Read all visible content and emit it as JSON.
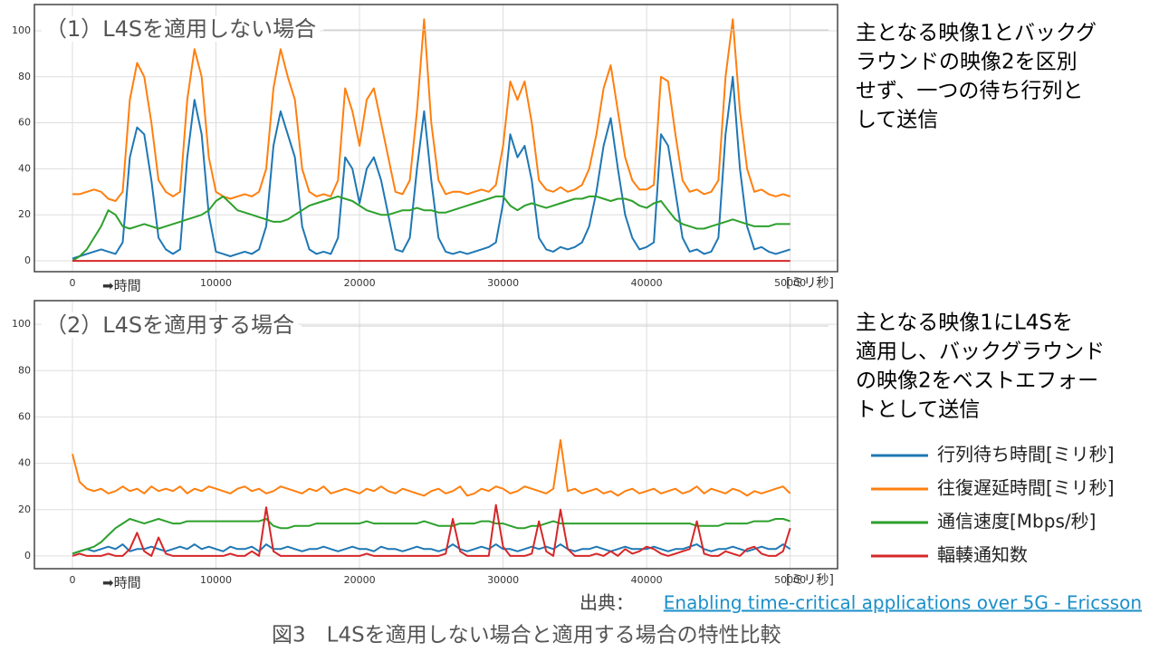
{
  "chart_data": [
    {
      "type": "line",
      "title": "（1）L4Sを適用しない場合",
      "xlabel": "➡時間",
      "xunit": "[ミリ秒]",
      "xlim": [
        -2650,
        53300
      ],
      "ylim": [
        -4.7,
        111.4
      ],
      "xticks": [
        0,
        10000,
        20000,
        30000,
        40000,
        50000
      ],
      "yticks": [
        0,
        20,
        40,
        60,
        80,
        100
      ],
      "grid": true,
      "x": [
        0,
        500,
        1000,
        1500,
        2000,
        2500,
        3000,
        3500,
        4000,
        4500,
        5000,
        5500,
        6000,
        6500,
        7000,
        7500,
        8000,
        8500,
        9000,
        9500,
        10000,
        10500,
        11000,
        11500,
        12000,
        12500,
        13000,
        13500,
        14000,
        14500,
        15000,
        15500,
        16000,
        16500,
        17000,
        17500,
        18000,
        18500,
        19000,
        19500,
        20000,
        20500,
        21000,
        21500,
        22000,
        22500,
        23000,
        23500,
        24000,
        24500,
        25000,
        25500,
        26000,
        26500,
        27000,
        27500,
        28000,
        28500,
        29000,
        29500,
        30000,
        30500,
        31000,
        31500,
        32000,
        32500,
        33000,
        33500,
        34000,
        34500,
        35000,
        35500,
        36000,
        36500,
        37000,
        37500,
        38000,
        38500,
        39000,
        39500,
        40000,
        40500,
        41000,
        41500,
        42000,
        42500,
        43000,
        43500,
        44000,
        44500,
        45000,
        45500,
        46000,
        46500,
        47000,
        47500,
        48000,
        48500,
        49000,
        49500,
        50000
      ],
      "series": [
        {
          "color": "#1f77b4",
          "values": [
            1,
            2,
            3,
            4,
            5,
            4,
            3,
            8,
            45,
            58,
            55,
            35,
            10,
            5,
            3,
            5,
            45,
            70,
            55,
            20,
            4,
            3,
            2,
            3,
            4,
            3,
            5,
            15,
            50,
            65,
            55,
            45,
            15,
            5,
            3,
            4,
            3,
            10,
            45,
            40,
            25,
            40,
            45,
            35,
            20,
            5,
            4,
            10,
            40,
            65,
            35,
            10,
            4,
            3,
            4,
            3,
            4,
            5,
            6,
            8,
            25,
            55,
            45,
            50,
            35,
            10,
            5,
            4,
            6,
            5,
            6,
            8,
            15,
            30,
            50,
            62,
            40,
            20,
            10,
            5,
            6,
            8,
            55,
            50,
            30,
            10,
            4,
            5,
            3,
            4,
            10,
            55,
            80,
            40,
            15,
            5,
            6,
            4,
            3,
            4,
            5
          ]
        },
        {
          "color": "#ff7f0e",
          "values": [
            29,
            29,
            30,
            31,
            30,
            27,
            26,
            30,
            70,
            86,
            80,
            60,
            35,
            30,
            28,
            30,
            70,
            92,
            80,
            45,
            30,
            28,
            27,
            28,
            29,
            28,
            30,
            40,
            75,
            92,
            80,
            70,
            40,
            30,
            28,
            29,
            28,
            35,
            75,
            65,
            50,
            70,
            75,
            60,
            45,
            30,
            29,
            35,
            65,
            105,
            60,
            35,
            29,
            30,
            30,
            29,
            30,
            31,
            30,
            33,
            50,
            78,
            70,
            78,
            60,
            35,
            31,
            30,
            32,
            30,
            31,
            33,
            40,
            55,
            75,
            85,
            65,
            45,
            35,
            31,
            31,
            33,
            80,
            78,
            55,
            35,
            30,
            31,
            29,
            30,
            35,
            80,
            105,
            65,
            40,
            30,
            31,
            29,
            28,
            29,
            28
          ]
        },
        {
          "color": "#2ca02c",
          "values": [
            0,
            2,
            5,
            10,
            15,
            22,
            20,
            15,
            14,
            15,
            16,
            15,
            14,
            15,
            16,
            17,
            18,
            19,
            20,
            22,
            26,
            28,
            25,
            22,
            21,
            20,
            19,
            18,
            17,
            17,
            18,
            20,
            22,
            24,
            25,
            26,
            27,
            28,
            27,
            26,
            24,
            22,
            21,
            20,
            20,
            21,
            22,
            22,
            23,
            22,
            22,
            21,
            21,
            22,
            23,
            24,
            25,
            26,
            27,
            28,
            28,
            24,
            22,
            24,
            25,
            24,
            23,
            24,
            25,
            26,
            27,
            27,
            28,
            28,
            27,
            26,
            27,
            27,
            26,
            24,
            23,
            25,
            26,
            22,
            18,
            16,
            15,
            14,
            14,
            15,
            16,
            17,
            18,
            17,
            16,
            15,
            15,
            15,
            16,
            16,
            16
          ]
        },
        {
          "color": "#d62728",
          "values": [
            0,
            0,
            0,
            0,
            0,
            0,
            0,
            0,
            0,
            0,
            0,
            0,
            0,
            0,
            0,
            0,
            0,
            0,
            0,
            0,
            0,
            0,
            0,
            0,
            0,
            0,
            0,
            0,
            0,
            0,
            0,
            0,
            0,
            0,
            0,
            0,
            0,
            0,
            0,
            0,
            0,
            0,
            0,
            0,
            0,
            0,
            0,
            0,
            0,
            0,
            0,
            0,
            0,
            0,
            0,
            0,
            0,
            0,
            0,
            0,
            0,
            0,
            0,
            0,
            0,
            0,
            0,
            0,
            0,
            0,
            0,
            0,
            0,
            0,
            0,
            0,
            0,
            0,
            0,
            0,
            0,
            0,
            0,
            0,
            0,
            0,
            0,
            0,
            0,
            0,
            0,
            0,
            0,
            0,
            0,
            0,
            0,
            0,
            0,
            0,
            0
          ]
        }
      ]
    },
    {
      "type": "line",
      "title": "（2）L4Sを適用する場合",
      "xlabel": "➡時間",
      "xunit": "[ミリ秒]",
      "xlim": [
        -2650,
        53300
      ],
      "ylim": [
        -5.5,
        110.2
      ],
      "xticks": [
        0,
        10000,
        20000,
        30000,
        40000,
        50000
      ],
      "yticks": [
        0,
        20,
        40,
        60,
        80,
        100
      ],
      "grid": true,
      "x": [
        0,
        500,
        1000,
        1500,
        2000,
        2500,
        3000,
        3500,
        4000,
        4500,
        5000,
        5500,
        6000,
        6500,
        7000,
        7500,
        8000,
        8500,
        9000,
        9500,
        10000,
        10500,
        11000,
        11500,
        12000,
        12500,
        13000,
        13500,
        14000,
        14500,
        15000,
        15500,
        16000,
        16500,
        17000,
        17500,
        18000,
        18500,
        19000,
        19500,
        20000,
        20500,
        21000,
        21500,
        22000,
        22500,
        23000,
        23500,
        24000,
        24500,
        25000,
        25500,
        26000,
        26500,
        27000,
        27500,
        28000,
        28500,
        29000,
        29500,
        30000,
        30500,
        31000,
        31500,
        32000,
        32500,
        33000,
        33500,
        34000,
        34500,
        35000,
        35500,
        36000,
        36500,
        37000,
        37500,
        38000,
        38500,
        39000,
        39500,
        40000,
        40500,
        41000,
        41500,
        42000,
        42500,
        43000,
        43500,
        44000,
        44500,
        45000,
        45500,
        46000,
        46500,
        47000,
        47500,
        48000,
        48500,
        49000,
        49500,
        50000
      ],
      "series": [
        {
          "name": "行列待ち時間[ミリ秒]",
          "color": "#1f77b4",
          "values": [
            1,
            2,
            3,
            2,
            3,
            4,
            3,
            5,
            2,
            3,
            3,
            4,
            3,
            2,
            3,
            4,
            3,
            5,
            3,
            4,
            3,
            2,
            4,
            3,
            3,
            4,
            2,
            5,
            3,
            3,
            4,
            3,
            2,
            3,
            3,
            4,
            3,
            2,
            3,
            4,
            3,
            3,
            2,
            4,
            3,
            3,
            2,
            3,
            4,
            3,
            3,
            2,
            3,
            5,
            3,
            2,
            3,
            4,
            3,
            5,
            3,
            3,
            2,
            3,
            4,
            3,
            4,
            3,
            5,
            3,
            2,
            3,
            3,
            4,
            3,
            2,
            3,
            4,
            3,
            3,
            3,
            4,
            3,
            2,
            3,
            3,
            4,
            5,
            3,
            2,
            3,
            3,
            4,
            3,
            2,
            3,
            4,
            3,
            3,
            5,
            3
          ]
        },
        {
          "name": "往復遅延時間[ミリ秒]",
          "color": "#ff7f0e",
          "values": [
            44,
            32,
            29,
            28,
            29,
            27,
            28,
            30,
            28,
            29,
            27,
            30,
            28,
            29,
            28,
            30,
            27,
            29,
            28,
            30,
            29,
            28,
            27,
            29,
            30,
            28,
            29,
            27,
            28,
            30,
            29,
            28,
            27,
            29,
            28,
            30,
            27,
            28,
            29,
            28,
            27,
            29,
            28,
            30,
            28,
            27,
            29,
            28,
            27,
            26,
            28,
            29,
            27,
            28,
            30,
            26,
            27,
            29,
            28,
            30,
            29,
            27,
            28,
            30,
            29,
            28,
            27,
            29,
            50,
            28,
            29,
            27,
            28,
            29,
            27,
            28,
            26,
            28,
            29,
            27,
            28,
            29,
            27,
            28,
            29,
            27,
            28,
            30,
            27,
            29,
            28,
            27,
            29,
            28,
            26,
            28,
            27,
            28,
            29,
            30,
            27
          ]
        },
        {
          "name": "通信速度[Mbps/秒]",
          "color": "#2ca02c",
          "values": [
            1,
            2,
            3,
            4,
            6,
            9,
            12,
            14,
            16,
            15,
            14,
            15,
            16,
            15,
            14,
            14,
            15,
            15,
            15,
            15,
            15,
            15,
            15,
            15,
            15,
            15,
            15,
            16,
            13,
            12,
            12,
            13,
            13,
            13,
            14,
            14,
            14,
            14,
            14,
            14,
            14,
            15,
            14,
            14,
            14,
            14,
            14,
            14,
            14,
            15,
            14,
            13,
            13,
            13,
            14,
            14,
            14,
            15,
            15,
            14,
            14,
            13,
            12,
            12,
            13,
            13,
            14,
            15,
            14,
            14,
            14,
            14,
            14,
            14,
            14,
            14,
            14,
            14,
            14,
            14,
            14,
            14,
            14,
            14,
            14,
            14,
            14,
            13,
            13,
            13,
            13,
            14,
            14,
            14,
            14,
            15,
            15,
            15,
            16,
            16,
            15
          ]
        },
        {
          "name": "輻輳通知数",
          "color": "#d62728",
          "values": [
            0,
            1,
            0,
            0,
            0,
            1,
            0,
            0,
            3,
            10,
            2,
            0,
            8,
            1,
            0,
            0,
            0,
            0,
            0,
            0,
            0,
            0,
            1,
            0,
            0,
            2,
            0,
            21,
            2,
            0,
            0,
            0,
            0,
            0,
            0,
            0,
            0,
            0,
            0,
            0,
            0,
            1,
            0,
            0,
            0,
            0,
            0,
            0,
            0,
            0,
            0,
            0,
            1,
            16,
            2,
            0,
            0,
            0,
            0,
            22,
            4,
            0,
            0,
            0,
            1,
            15,
            2,
            0,
            20,
            3,
            0,
            0,
            0,
            1,
            0,
            2,
            0,
            3,
            1,
            2,
            4,
            3,
            1,
            0,
            1,
            2,
            3,
            15,
            1,
            0,
            0,
            2,
            1,
            0,
            3,
            4,
            1,
            0,
            0,
            2,
            12
          ]
        }
      ]
    }
  ],
  "side_notes": [
    [
      "主となる映像1とバックグ",
      "ラウンドの映像2を区別",
      "せず、一つの待ち行列と",
      "して送信"
    ],
    [
      "主となる映像1にL4Sを",
      "適用し、バックグラウンド",
      "の映像2をベストエフォー",
      "トとして送信"
    ]
  ],
  "source": {
    "prefix": "出典：",
    "link": "Enabling time-critical applications over 5G - Ericsson"
  },
  "caption": "図3　L4Sを適用しない場合と適用する場合の特性比較"
}
